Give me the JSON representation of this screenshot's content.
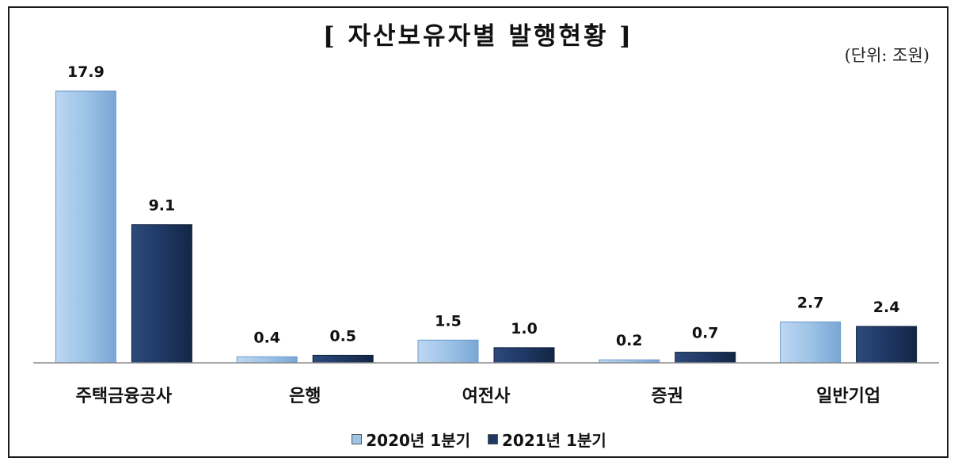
{
  "chart_data": {
    "type": "bar",
    "title": "[ 자산보유자별 발행현황 ]",
    "unit_label": "(단위: 조원)",
    "categories": [
      "주택금융공사",
      "은행",
      "여전사",
      "증권",
      "일반기업"
    ],
    "series": [
      {
        "name": "2020년 1분기",
        "values": [
          17.9,
          0.4,
          1.5,
          0.2,
          2.7
        ],
        "color": "#9dc3e6",
        "value_labels": [
          "17.9",
          "0.4",
          "1.5",
          "0.2",
          "2.7"
        ]
      },
      {
        "name": "2021년 1분기",
        "values": [
          9.1,
          0.5,
          1.0,
          0.7,
          2.4
        ],
        "color": "#1f3864",
        "value_labels": [
          "9.1",
          "0.5",
          "1.0",
          "0.7",
          "2.4"
        ]
      }
    ],
    "ylim": [
      0,
      17.9
    ],
    "grid": false,
    "legend_position": "bottom"
  }
}
